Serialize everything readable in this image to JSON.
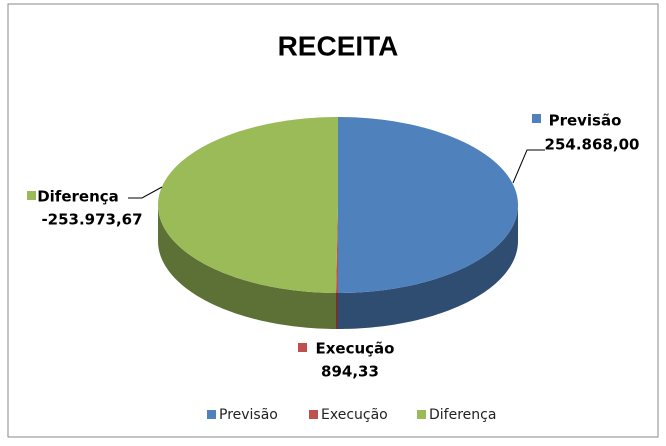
{
  "chart_data": {
    "type": "pie3d",
    "title": "RECEITA",
    "categories": [
      "Previsão",
      "Execução",
      "Diferença"
    ],
    "values": [
      254868.0,
      894.33,
      -253973.67
    ],
    "value_labels": [
      "254.868,00",
      "894,33",
      "-253.973,67"
    ],
    "colors": [
      "#4f81bd",
      "#c0504d",
      "#9bbb59"
    ],
    "legend": "bottom"
  }
}
